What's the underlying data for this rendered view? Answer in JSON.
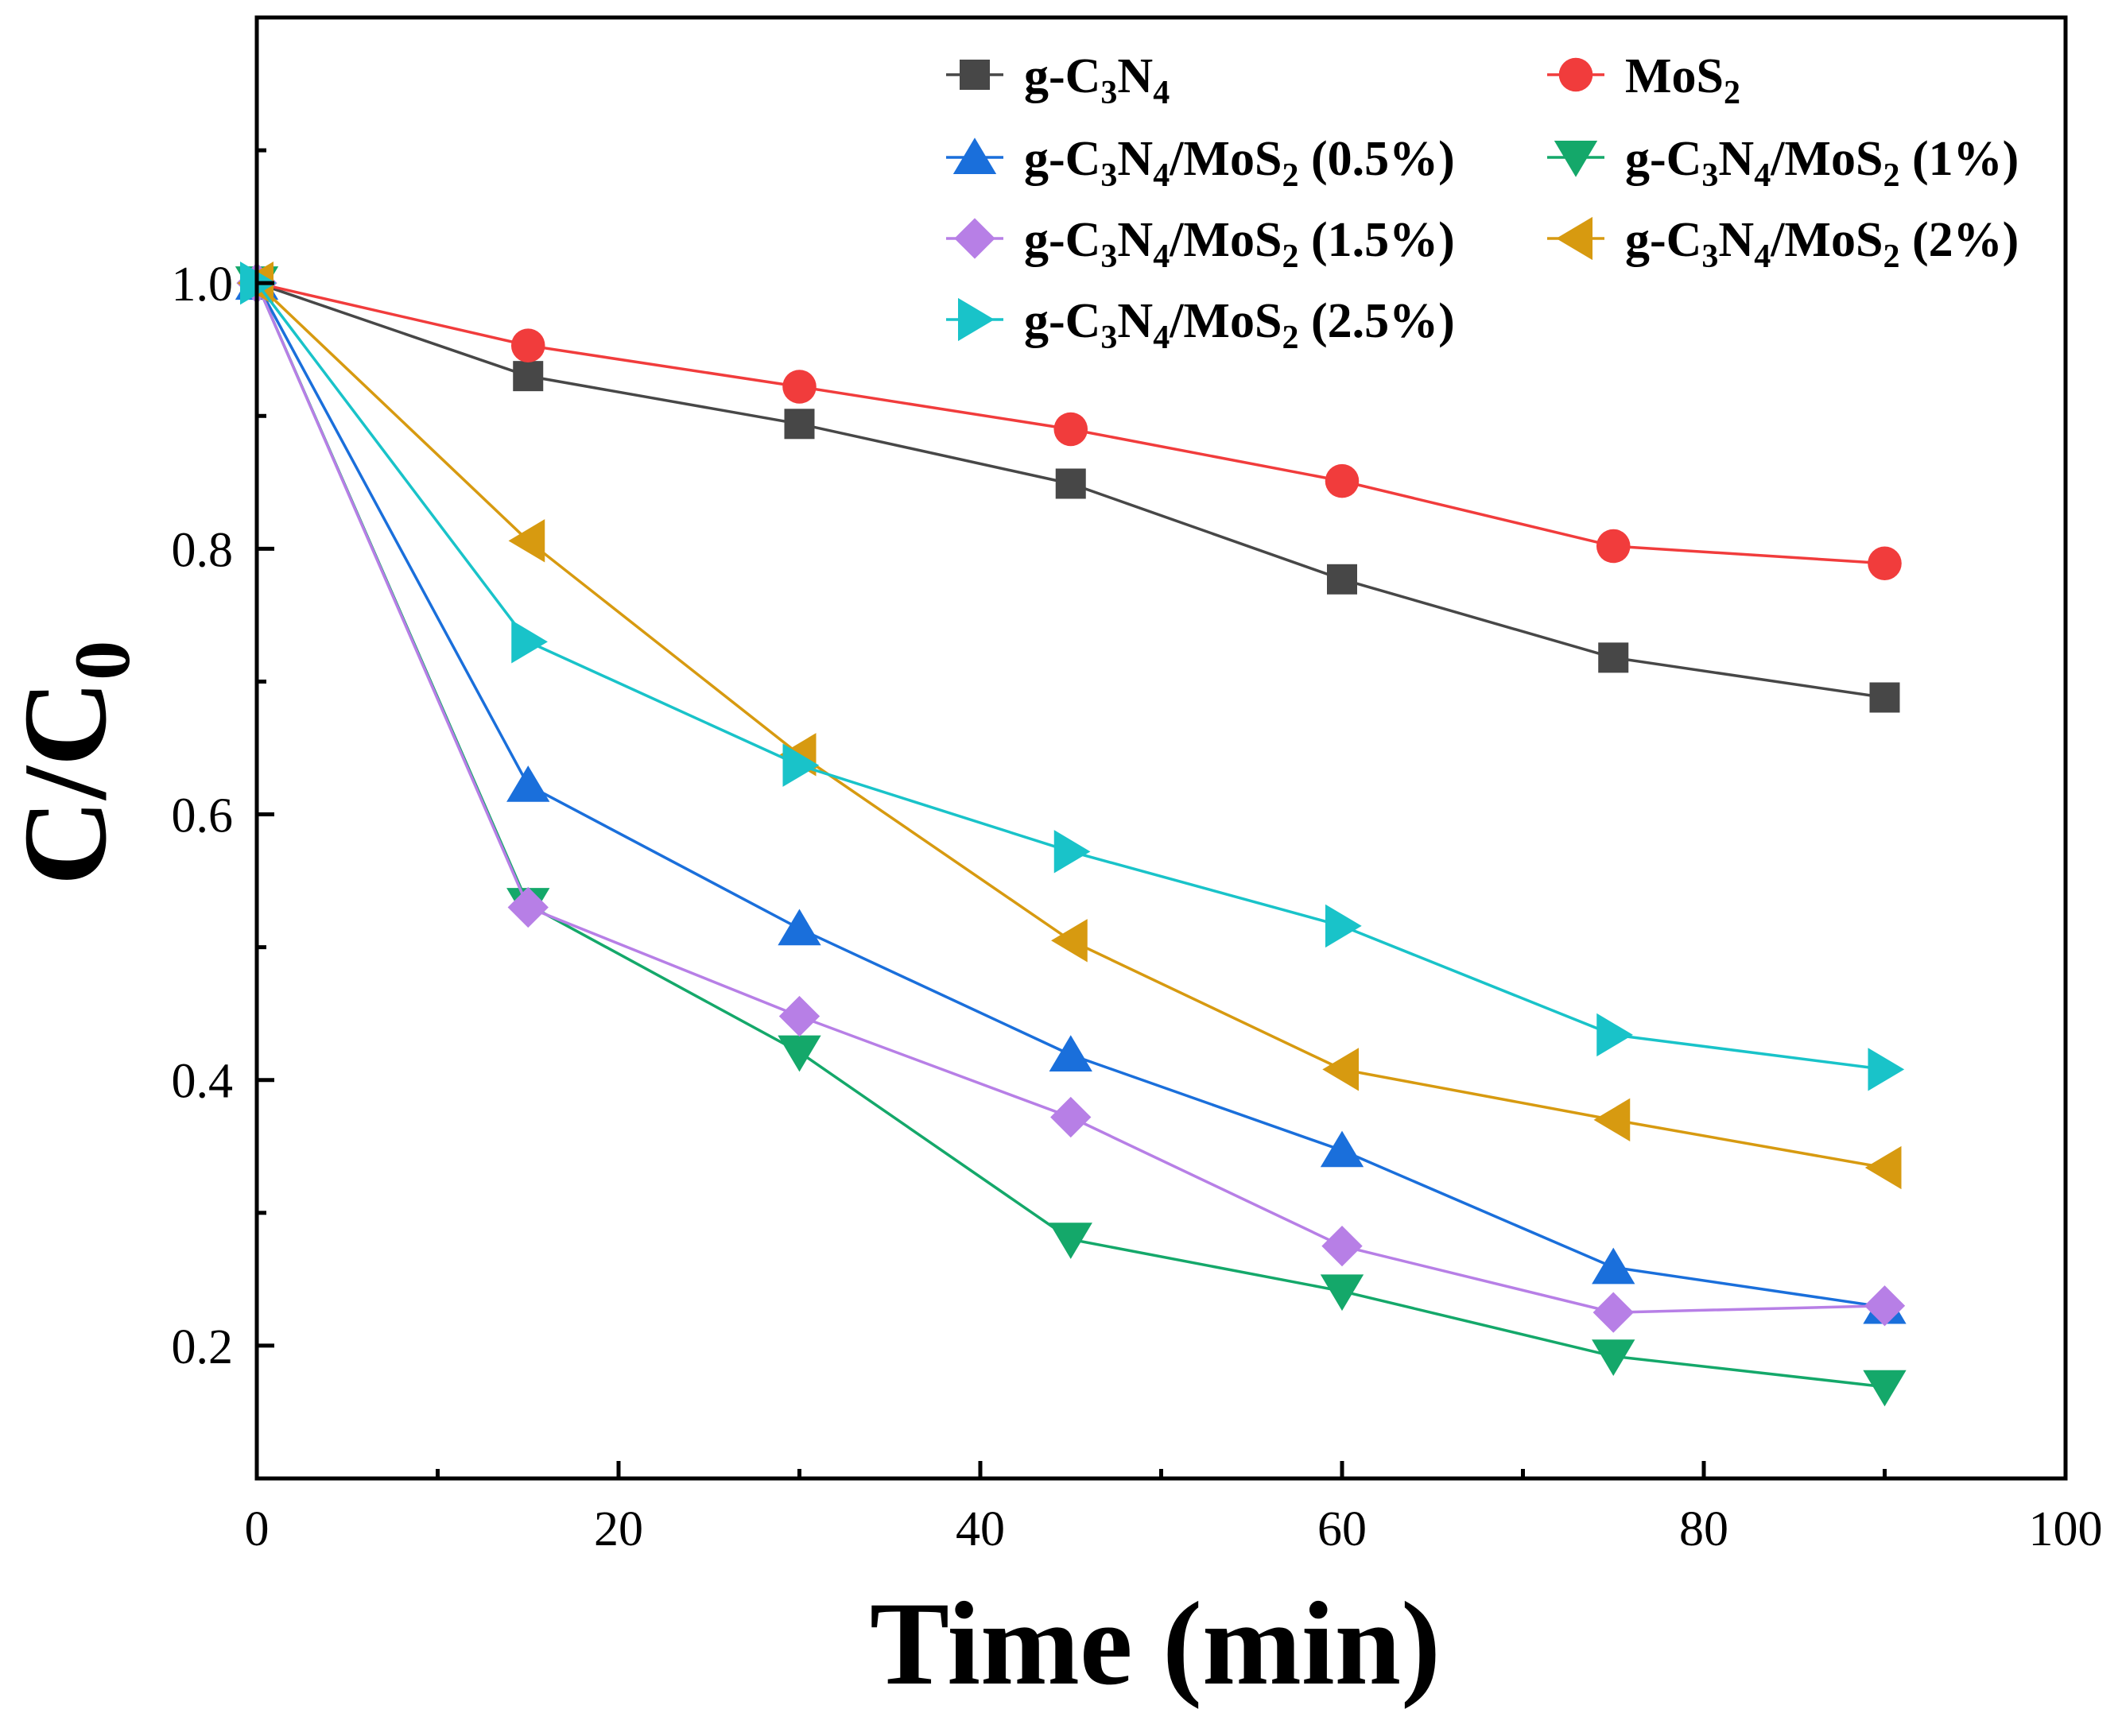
{
  "chart_data": {
    "type": "line",
    "xlabel": "Time (min)",
    "ylabel": "C/C0",
    "ylabel_main": "C/C",
    "ylabel_sub": "0",
    "xlim": [
      0,
      100
    ],
    "ylim": [
      0.1,
      1.2
    ],
    "xticks": [
      "0",
      "20",
      "40",
      "60",
      "80",
      "100"
    ],
    "yticks": [
      "0.2",
      "0.4",
      "0.6",
      "0.8",
      "1.0"
    ],
    "x": [
      0,
      15,
      30,
      45,
      60,
      75,
      90
    ],
    "legend_placement": "top-right",
    "series": [
      {
        "name": "g-C3N4",
        "name_parts": [
          [
            "g-C",
            ""
          ],
          [
            "3",
            "sub"
          ],
          [
            "N",
            ""
          ],
          [
            "4",
            "sub"
          ]
        ],
        "marker": "square",
        "color": "#474747",
        "values": [
          1.0,
          0.93,
          0.894,
          0.849,
          0.777,
          0.718,
          0.688
        ]
      },
      {
        "name": "MoS2",
        "name_parts": [
          [
            "MoS",
            ""
          ],
          [
            "2",
            "sub"
          ]
        ],
        "marker": "circle",
        "color": "#f13c3c",
        "values": [
          1.0,
          0.953,
          0.922,
          0.89,
          0.851,
          0.802,
          0.789
        ]
      },
      {
        "name": "g-C3N4/MoS2 (0.5%)",
        "name_parts": [
          [
            "g-C",
            ""
          ],
          [
            "3",
            "sub"
          ],
          [
            "N",
            ""
          ],
          [
            "4",
            "sub"
          ],
          [
            "/MoS",
            ""
          ],
          [
            "2",
            "sub"
          ],
          [
            " (0.5%)",
            ""
          ]
        ],
        "marker": "triangle-up",
        "color": "#1a6fdb",
        "values": [
          1.0,
          0.622,
          0.514,
          0.419,
          0.347,
          0.259,
          0.229
        ]
      },
      {
        "name": "g-C3N4/MoS2 (1%)",
        "name_parts": [
          [
            "g-C",
            ""
          ],
          [
            "3",
            "sub"
          ],
          [
            "N",
            ""
          ],
          [
            "4",
            "sub"
          ],
          [
            "/MoS",
            ""
          ],
          [
            "2",
            "sub"
          ],
          [
            " (1%)",
            ""
          ]
        ],
        "marker": "triangle-down",
        "color": "#14a86a",
        "values": [
          1.0,
          0.532,
          0.421,
          0.28,
          0.241,
          0.192,
          0.169
        ]
      },
      {
        "name": "g-C3N4/MoS2 (1.5%)",
        "name_parts": [
          [
            "g-C",
            ""
          ],
          [
            "3",
            "sub"
          ],
          [
            "N",
            ""
          ],
          [
            "4",
            "sub"
          ],
          [
            "/MoS",
            ""
          ],
          [
            "2",
            "sub"
          ],
          [
            " (1.5%)",
            ""
          ]
        ],
        "marker": "diamond",
        "color": "#b77fe6",
        "values": [
          1.0,
          0.53,
          0.448,
          0.372,
          0.275,
          0.225,
          0.23
        ]
      },
      {
        "name": "g-C3N4/MoS2 (2%)",
        "name_parts": [
          [
            "g-C",
            ""
          ],
          [
            "3",
            "sub"
          ],
          [
            "N",
            ""
          ],
          [
            "4",
            "sub"
          ],
          [
            "/MoS",
            ""
          ],
          [
            "2",
            "sub"
          ],
          [
            " (2%)",
            ""
          ]
        ],
        "marker": "triangle-left",
        "color": "#d79a10",
        "values": [
          1.0,
          0.806,
          0.645,
          0.505,
          0.408,
          0.37,
          0.334
        ]
      },
      {
        "name": "g-C3N4/MoS2 (2.5%)",
        "name_parts": [
          [
            "g-C",
            ""
          ],
          [
            "3",
            "sub"
          ],
          [
            "N",
            ""
          ],
          [
            "4",
            "sub"
          ],
          [
            "/MoS",
            ""
          ],
          [
            "2",
            "sub"
          ],
          [
            " (2.5%)",
            ""
          ]
        ],
        "marker": "triangle-right",
        "color": "#19c3c9",
        "values": [
          1.0,
          0.73,
          0.637,
          0.572,
          0.516,
          0.434,
          0.408
        ]
      }
    ]
  }
}
